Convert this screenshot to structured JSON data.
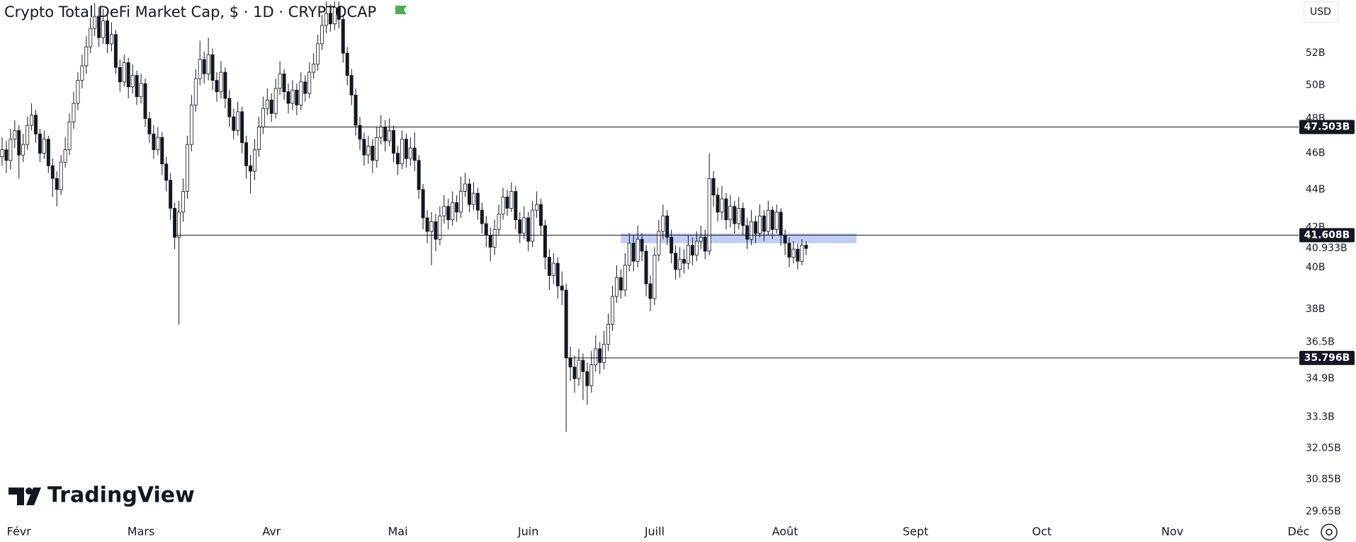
{
  "chart_data": {
    "type": "candlestick",
    "title": "Crypto Total DeFi Market Cap, $ · 1D · CRYPTOCAP",
    "currency": "USD",
    "brand": "TradingView",
    "log_scale": true,
    "up_color": "#ffffff",
    "down_color": "#131722",
    "x": [
      -4,
      -3,
      -2,
      -1,
      0,
      1,
      2,
      3,
      4,
      5,
      6,
      7,
      8,
      9,
      10,
      11,
      12,
      13,
      14,
      15,
      16,
      17,
      18,
      19,
      20,
      21,
      22,
      23,
      24,
      25,
      26,
      27,
      28,
      29,
      30,
      31,
      32,
      33,
      34,
      35,
      36,
      37,
      38,
      39,
      40,
      41,
      42,
      43,
      44,
      45,
      46,
      47,
      48,
      49,
      50,
      51,
      52,
      53,
      54,
      55,
      56,
      57,
      58,
      59,
      60,
      61,
      62,
      63,
      64,
      65,
      66,
      67,
      68,
      69,
      70,
      71,
      72,
      73,
      74,
      75,
      76,
      77,
      78,
      79,
      80,
      81,
      82,
      83,
      84,
      85,
      86,
      87,
      88,
      89,
      90,
      91,
      92,
      93,
      94,
      95,
      96,
      97,
      98,
      99,
      100,
      101,
      102,
      103,
      104,
      105,
      106,
      107,
      108,
      109,
      110,
      111,
      112,
      113,
      114,
      115,
      116,
      117,
      118,
      119,
      120,
      121,
      122,
      123,
      124,
      125,
      126,
      127,
      128,
      129,
      130,
      131,
      132,
      133,
      134,
      135,
      136,
      137,
      138,
      139,
      140,
      141,
      142,
      143,
      144,
      145,
      146,
      147,
      148,
      149,
      150,
      151,
      152,
      153,
      154,
      155,
      156,
      157,
      158,
      159,
      160,
      161,
      162,
      163,
      164,
      165,
      166,
      167,
      168,
      169,
      170,
      171,
      172,
      173,
      174,
      175,
      176,
      177,
      178,
      179,
      180,
      181,
      182,
      183,
      184,
      185,
      186,
      187
    ],
    "open": [
      45.8,
      46.2,
      45.6,
      46.8,
      47.3,
      45.9,
      46.5,
      47.6,
      48.2,
      47.1,
      46.0,
      46.8,
      45.3,
      44.6,
      44.0,
      45.5,
      46.2,
      47.8,
      48.9,
      50.3,
      51.2,
      52.4,
      53.6,
      54.4,
      53.0,
      54.1,
      52.6,
      53.2,
      51.1,
      50.2,
      51.4,
      49.9,
      50.6,
      49.3,
      50.1,
      48.0,
      47.1,
      46.2,
      46.9,
      45.4,
      44.5,
      43.0,
      41.5,
      42.8,
      43.9,
      46.5,
      48.8,
      50.4,
      51.6,
      50.7,
      51.9,
      50.3,
      49.6,
      50.8,
      49.2,
      48.1,
      47.3,
      48.4,
      46.6,
      45.3,
      45.0,
      46.2,
      47.5,
      48.6,
      49.1,
      48.3,
      49.8,
      50.7,
      49.6,
      48.9,
      49.7,
      48.8,
      50.2,
      49.5,
      50.8,
      51.3,
      52.6,
      53.8,
      54.6,
      53.9,
      55.0,
      54.2,
      52.0,
      50.6,
      49.4,
      47.6,
      46.8,
      45.9,
      46.4,
      45.6,
      46.9,
      47.5,
      46.7,
      47.3,
      46.0,
      45.4,
      46.8,
      45.7,
      46.3,
      45.6,
      44.0,
      42.5,
      41.8,
      42.3,
      41.4,
      42.6,
      43.1,
      42.4,
      43.3,
      42.8,
      43.9,
      44.3,
      43.2,
      43.8,
      42.9,
      42.2,
      41.6,
      41.0,
      41.9,
      42.7,
      43.6,
      43.0,
      43.9,
      42.4,
      41.7,
      42.5,
      41.3,
      42.9,
      43.2,
      42.1,
      40.5,
      39.6,
      40.2,
      39.1,
      38.9,
      35.8,
      35.4,
      34.9,
      35.7,
      35.2,
      34.6,
      35.5,
      36.2,
      35.6,
      36.4,
      37.3,
      38.6,
      39.5,
      38.9,
      40.1,
      41.2,
      40.3,
      41.4,
      40.8,
      39.2,
      38.5,
      40.6,
      41.8,
      42.6,
      41.5,
      40.7,
      39.9,
      40.4,
      40.2,
      41.1,
      40.6,
      41.3,
      41.5,
      40.8,
      44.6,
      43.7,
      42.8,
      43.5,
      42.4,
      43.1,
      42.2,
      43.0,
      42.1,
      41.4,
      42.3,
      41.7,
      42.6,
      41.8,
      42.9,
      41.9,
      42.8,
      41.6,
      41.2,
      40.5,
      40.9,
      40.3,
      41.1
    ],
    "high": [
      46.9,
      46.7,
      47.4,
      47.9,
      47.6,
      47.1,
      48.1,
      48.9,
      48.5,
      47.4,
      47.3,
      47.0,
      45.7,
      45.0,
      45.9,
      46.9,
      48.3,
      49.6,
      50.8,
      51.9,
      53.1,
      54.3,
      55.3,
      55.0,
      54.9,
      54.5,
      54.0,
      53.5,
      51.6,
      51.9,
      51.7,
      51.3,
      50.9,
      50.7,
      50.4,
      48.4,
      47.6,
      47.5,
      47.2,
      45.8,
      44.9,
      43.3,
      43.4,
      44.6,
      47.0,
      49.4,
      51.0,
      52.8,
      52.1,
      53.0,
      52.3,
      50.8,
      51.5,
      51.1,
      49.7,
      48.6,
      49.0,
      48.7,
      47.0,
      45.9,
      46.8,
      48.1,
      49.3,
      49.8,
      49.5,
      50.4,
      51.5,
      51.0,
      50.1,
      50.3,
      50.1,
      50.8,
      50.6,
      51.4,
      52.0,
      53.2,
      54.5,
      55.4,
      55.2,
      55.4,
      55.4,
      54.5,
      52.4,
      51.0,
      49.8,
      48.1,
      47.2,
      47.0,
      46.8,
      47.5,
      48.2,
      47.9,
      48.0,
      47.6,
      46.4,
      47.3,
      47.1,
      46.9,
      47.2,
      45.9,
      44.3,
      42.9,
      42.8,
      42.7,
      43.1,
      43.7,
      43.5,
      43.9,
      43.7,
      44.7,
      44.9,
      44.6,
      44.4,
      44.1,
      43.3,
      42.6,
      42.0,
      42.4,
      43.2,
      44.1,
      44.0,
      44.4,
      44.2,
      42.8,
      43.1,
      42.8,
      43.4,
      43.9,
      43.5,
      42.4,
      40.9,
      40.7,
      40.5,
      39.8,
      39.2,
      36.3,
      35.9,
      36.2,
      36.0,
      35.6,
      36.1,
      36.8,
      36.5,
      37.0,
      37.8,
      39.1,
      40.1,
      39.9,
      40.7,
      41.7,
      41.6,
      42.1,
      41.7,
      41.1,
      39.6,
      41.0,
      42.4,
      43.2,
      42.9,
      41.9,
      41.1,
      41.0,
      40.9,
      41.6,
      41.5,
      41.8,
      42.1,
      41.9,
      46.0,
      45.0,
      44.1,
      44.2,
      43.8,
      43.7,
      43.4,
      43.6,
      43.3,
      42.5,
      42.9,
      42.6,
      43.2,
      42.9,
      43.4,
      43.1,
      43.2,
      43.0,
      41.9,
      41.5,
      41.3,
      41.2,
      41.4,
      41.3
    ],
    "low": [
      45.3,
      44.9,
      45.1,
      46.3,
      44.6,
      45.5,
      46.2,
      47.3,
      46.6,
      45.5,
      45.7,
      44.9,
      43.6,
      43.1,
      43.7,
      45.2,
      45.9,
      47.4,
      48.5,
      49.8,
      50.7,
      52.0,
      53.1,
      52.4,
      52.6,
      52.0,
      52.1,
      50.7,
      49.6,
      49.9,
      49.2,
      49.5,
      48.8,
      48.9,
      47.5,
      46.6,
      45.7,
      45.9,
      44.8,
      43.9,
      42.4,
      40.9,
      37.3,
      42.3,
      43.5,
      46.1,
      48.4,
      50.0,
      50.1,
      50.3,
      49.7,
      49.0,
      49.2,
      48.6,
      47.5,
      46.8,
      47.0,
      46.0,
      44.6,
      43.8,
      44.5,
      45.8,
      47.1,
      48.2,
      47.8,
      48.0,
      49.4,
      49.1,
      48.3,
      48.5,
      48.2,
      48.5,
      49.0,
      49.2,
      50.4,
      50.9,
      52.2,
      53.3,
      53.4,
      53.5,
      53.6,
      51.4,
      50.0,
      48.8,
      47.0,
      46.2,
      45.3,
      45.4,
      44.9,
      45.2,
      46.5,
      46.1,
      46.4,
      45.5,
      44.8,
      45.1,
      45.2,
      45.3,
      45.0,
      43.5,
      41.9,
      41.2,
      40.1,
      40.8,
      41.1,
      42.2,
      41.9,
      42.1,
      42.3,
      42.5,
      43.6,
      42.8,
      42.9,
      42.4,
      41.7,
      41.0,
      40.3,
      40.6,
      41.6,
      42.4,
      42.6,
      42.8,
      41.9,
      41.2,
      41.4,
      40.8,
      41.0,
      42.5,
      41.6,
      39.9,
      38.9,
      39.2,
      38.5,
      38.2,
      32.7,
      34.8,
      34.3,
      34.6,
      34.0,
      33.8,
      34.3,
      35.2,
      35.1,
      35.3,
      36.1,
      37.0,
      38.3,
      38.5,
      38.6,
      39.8,
      39.8,
      40.0,
      40.3,
      38.6,
      37.9,
      38.2,
      40.3,
      41.4,
      41.1,
      40.2,
      39.4,
      39.5,
      39.7,
      39.9,
      40.1,
      40.3,
      40.9,
      40.4,
      40.6,
      43.1,
      42.3,
      42.4,
      41.9,
      42.0,
      41.7,
      41.9,
      41.6,
      40.9,
      41.1,
      41.2,
      41.5,
      41.3,
      41.6,
      41.4,
      41.7,
      41.1,
      40.6,
      40.0,
      40.2,
      39.9,
      40.1,
      40.6
    ],
    "close": [
      46.2,
      45.6,
      46.8,
      47.3,
      45.9,
      46.5,
      47.6,
      48.2,
      47.1,
      46.0,
      46.8,
      45.3,
      44.6,
      44.0,
      45.5,
      46.2,
      47.8,
      48.9,
      50.3,
      51.2,
      52.4,
      53.6,
      54.4,
      53.0,
      54.1,
      52.6,
      53.2,
      51.1,
      50.2,
      51.4,
      49.9,
      50.6,
      49.3,
      50.1,
      48.0,
      47.1,
      46.2,
      46.9,
      45.4,
      44.5,
      43.0,
      41.5,
      42.8,
      43.9,
      46.5,
      48.8,
      50.4,
      51.6,
      50.7,
      51.9,
      50.3,
      49.6,
      50.8,
      49.2,
      48.1,
      47.3,
      48.4,
      46.6,
      45.3,
      45.0,
      46.2,
      47.5,
      48.6,
      49.1,
      48.3,
      49.8,
      50.7,
      49.6,
      48.9,
      49.7,
      48.8,
      50.2,
      49.5,
      50.8,
      51.3,
      52.6,
      53.8,
      54.6,
      53.9,
      55.0,
      54.2,
      52.0,
      50.6,
      49.4,
      47.6,
      46.8,
      45.9,
      46.4,
      45.6,
      46.9,
      47.5,
      46.7,
      47.3,
      46.0,
      45.4,
      46.8,
      45.7,
      46.3,
      45.6,
      44.0,
      42.5,
      41.8,
      42.3,
      41.4,
      42.6,
      43.1,
      42.4,
      43.3,
      42.8,
      43.9,
      44.3,
      43.2,
      43.8,
      42.9,
      42.2,
      41.6,
      41.0,
      41.9,
      42.7,
      43.6,
      43.0,
      43.9,
      42.4,
      41.7,
      42.5,
      41.3,
      42.9,
      43.2,
      42.1,
      40.5,
      39.6,
      40.2,
      39.1,
      38.9,
      35.8,
      35.4,
      34.9,
      35.7,
      35.2,
      34.6,
      35.5,
      36.2,
      35.6,
      36.4,
      37.3,
      38.6,
      39.5,
      38.9,
      40.1,
      41.2,
      40.3,
      41.4,
      40.8,
      39.2,
      38.5,
      40.6,
      41.8,
      42.6,
      41.5,
      40.7,
      39.9,
      40.4,
      40.2,
      41.1,
      40.6,
      41.3,
      41.5,
      40.8,
      44.6,
      43.7,
      42.8,
      43.5,
      42.4,
      43.1,
      42.2,
      43.0,
      42.1,
      41.4,
      42.3,
      41.7,
      42.6,
      41.8,
      42.9,
      41.9,
      42.8,
      41.6,
      41.2,
      40.5,
      40.9,
      40.3,
      41.1,
      40.933
    ],
    "xlim": [
      -4.5,
      304
    ],
    "xticks": [
      {
        "value": 0,
        "label": "Févr"
      },
      {
        "value": 29,
        "label": "Mars"
      },
      {
        "value": 60,
        "label": "Avr"
      },
      {
        "value": 90,
        "label": "Mai"
      },
      {
        "value": 121,
        "label": "Juin"
      },
      {
        "value": 151,
        "label": "Juill"
      },
      {
        "value": 182,
        "label": "Août"
      },
      {
        "value": 213,
        "label": "Sept"
      },
      {
        "value": 243,
        "label": "Oct"
      },
      {
        "value": 274,
        "label": "Nov"
      },
      {
        "value": 304,
        "label": "Déc"
      }
    ],
    "ylim": [
      29.4,
      55.5
    ],
    "yticks": [
      {
        "value": 52,
        "label": "52B"
      },
      {
        "value": 50,
        "label": "50B"
      },
      {
        "value": 48,
        "label": "48B"
      },
      {
        "value": 46,
        "label": "46B"
      },
      {
        "value": 44,
        "label": "44B"
      },
      {
        "value": 42,
        "label": "42B"
      },
      {
        "value": 40,
        "label": "40B"
      },
      {
        "value": 38,
        "label": "38B"
      },
      {
        "value": 36.5,
        "label": "36.5B"
      },
      {
        "value": 34.9,
        "label": "34.9B"
      },
      {
        "value": 33.3,
        "label": "33.3B"
      },
      {
        "value": 32.05,
        "label": "32.05B"
      },
      {
        "value": 30.85,
        "label": "30.85B"
      },
      {
        "value": 29.65,
        "label": "29.65B"
      }
    ],
    "hlines": [
      {
        "value": 47.503,
        "label": "47.503B",
        "from": 57
      },
      {
        "value": 41.608,
        "label": "41.608B",
        "from": 37
      },
      {
        "value": 35.796,
        "label": "35.796B",
        "from": 130
      }
    ],
    "last_price": {
      "value": 40.933,
      "label": "40.933B"
    },
    "zone": {
      "from": 143,
      "to": 199,
      "high": 41.7,
      "low": 41.2,
      "color": "rgba(100,130,230,0.4)"
    }
  }
}
